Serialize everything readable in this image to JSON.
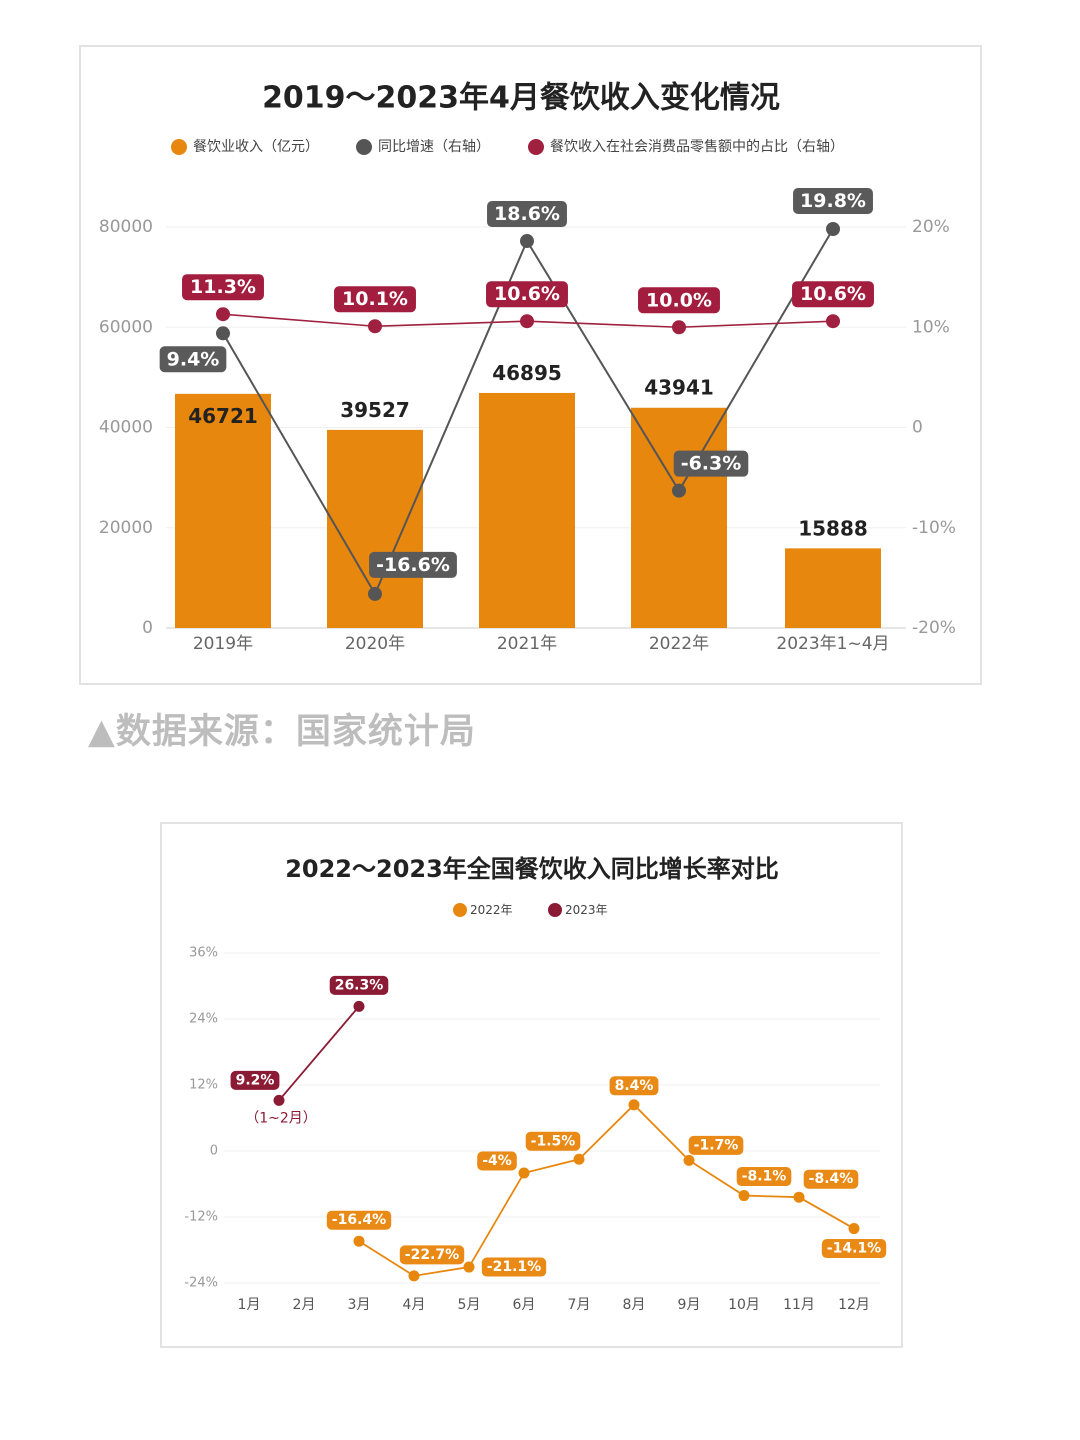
{
  "chart1": {
    "title": "2019～2023年4月餐饮收入变化情况",
    "legend": [
      {
        "label": "餐饮业收入（亿元）",
        "color": "#e8870e"
      },
      {
        "label": "同比增速（右轴）",
        "color": "#555555"
      },
      {
        "label": "餐饮收入在社会消费品零售额中的占比（右轴）",
        "color": "#a0203f"
      }
    ]
  },
  "source": "▲数据来源：国家统计局",
  "chart2": {
    "title": "2022～2023年全国餐饮收入同比增长率对比",
    "legend": [
      {
        "label": "2022年",
        "color": "#e8870e"
      },
      {
        "label": "2023年",
        "color": "#8b1a34"
      }
    ],
    "annotation": "（1~2月）"
  },
  "chart_data": [
    {
      "type": "bar",
      "title": "2019～2023年4月餐饮收入变化情况",
      "categories": [
        "2019年",
        "2020年",
        "2021年",
        "2022年",
        "2023年1~4月"
      ],
      "y_ticks_left": [
        "0",
        "20000",
        "40000",
        "60000",
        "80000"
      ],
      "y_ticks_right": [
        "-20%",
        "-10%",
        "0",
        "10%",
        "20%"
      ],
      "ylim_left": [
        0,
        80000
      ],
      "ylim_right": [
        -20,
        20
      ],
      "legend_position": "top",
      "series": [
        {
          "name": "餐饮业收入（亿元）",
          "kind": "bar",
          "axis": "left",
          "color": "#e8870e",
          "values": [
            46721,
            39527,
            46895,
            43941,
            15888
          ],
          "labels": [
            "46721",
            "39527",
            "46895",
            "43941",
            "15888"
          ]
        },
        {
          "name": "同比增速（右轴）",
          "kind": "line",
          "axis": "right",
          "color": "#555555",
          "values": [
            9.4,
            -16.6,
            18.6,
            -6.3,
            19.8
          ],
          "labels": [
            "9.4%",
            "-16.6%",
            "18.6%",
            "-6.3%",
            "19.8%"
          ]
        },
        {
          "name": "餐饮收入在社会消费品零售额中的占比（右轴）",
          "kind": "line",
          "axis": "right",
          "color": "#a0203f",
          "values": [
            11.3,
            10.1,
            10.6,
            10.0,
            10.6
          ],
          "labels": [
            "11.3%",
            "10.1%",
            "10.6%",
            "10.0%",
            "10.6%"
          ]
        }
      ]
    },
    {
      "type": "line",
      "title": "2022～2023年全国餐饮收入同比增长率对比",
      "categories": [
        "1月",
        "2月",
        "3月",
        "4月",
        "5月",
        "6月",
        "7月",
        "8月",
        "9月",
        "10月",
        "11月",
        "12月"
      ],
      "y_ticks": [
        "36%",
        "24%",
        "12%",
        "0",
        "-12%",
        "-24%"
      ],
      "ylim": [
        -24,
        36
      ],
      "grid": true,
      "legend_position": "top",
      "series": [
        {
          "name": "2022年",
          "color": "#e8870e",
          "values": [
            null,
            null,
            -16.4,
            -22.7,
            -21.1,
            -4,
            -1.5,
            8.4,
            -1.7,
            -8.1,
            -8.4,
            -14.1
          ],
          "labels": [
            "",
            "",
            "-16.4%",
            "-22.7%",
            "-21.1%",
            "-4%",
            "-1.5%",
            "8.4%",
            "-1.7%",
            "-8.1%",
            "-8.4%",
            "-14.1%"
          ]
        },
        {
          "name": "2023年",
          "color": "#8b1a34",
          "values": [
            9.2,
            null,
            26.3,
            null,
            null,
            null,
            null,
            null,
            null,
            null,
            null,
            null
          ],
          "labels": [
            "9.2%",
            "",
            "26.3%",
            "",
            "",
            "",
            "",
            "",
            "",
            "",
            "",
            ""
          ]
        }
      ]
    }
  ]
}
